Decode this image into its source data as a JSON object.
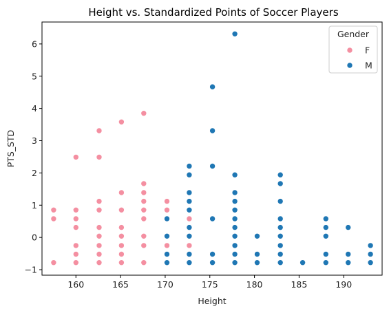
{
  "chart_data": {
    "type": "scatter",
    "title": "Height vs. Standardized Points of Soccer Players",
    "xlabel": "Height",
    "ylabel": "PTS_STD",
    "xlim": [
      156.2,
      194.3
    ],
    "ylim": [
      -1.17,
      6.68
    ],
    "xticks": [
      160,
      165,
      170,
      175,
      180,
      185,
      190
    ],
    "yticks": [
      -1,
      0,
      1,
      2,
      3,
      4,
      5,
      6
    ],
    "grid": false,
    "legend": {
      "title": "Gender",
      "placement": "top-right"
    },
    "series": [
      {
        "name": "F",
        "color": "#f48fa1",
        "points": [
          [
            157.5,
            -0.78
          ],
          [
            157.5,
            0.58
          ],
          [
            157.5,
            0.85
          ],
          [
            160,
            -0.78
          ],
          [
            160,
            -0.52
          ],
          [
            160,
            -0.25
          ],
          [
            160,
            0.31
          ],
          [
            160,
            0.58
          ],
          [
            160,
            0.85
          ],
          [
            160,
            2.49
          ],
          [
            162.6,
            -0.78
          ],
          [
            162.6,
            -0.52
          ],
          [
            162.6,
            -0.25
          ],
          [
            162.6,
            0.04
          ],
          [
            162.6,
            0.31
          ],
          [
            162.6,
            0.85
          ],
          [
            162.6,
            1.12
          ],
          [
            162.6,
            2.49
          ],
          [
            162.6,
            3.31
          ],
          [
            165.1,
            -0.78
          ],
          [
            165.1,
            -0.52
          ],
          [
            165.1,
            -0.25
          ],
          [
            165.1,
            0.04
          ],
          [
            165.1,
            0.31
          ],
          [
            165.1,
            0.85
          ],
          [
            165.1,
            1.39
          ],
          [
            165.1,
            3.58
          ],
          [
            167.6,
            -0.78
          ],
          [
            167.6,
            -0.25
          ],
          [
            167.6,
            0.04
          ],
          [
            167.6,
            0.58
          ],
          [
            167.6,
            0.85
          ],
          [
            167.6,
            1.12
          ],
          [
            167.6,
            1.39
          ],
          [
            167.6,
            1.67
          ],
          [
            167.6,
            3.85
          ],
          [
            170.2,
            -0.52
          ],
          [
            170.2,
            -0.25
          ],
          [
            170.2,
            0.04
          ],
          [
            170.2,
            0.85
          ],
          [
            170.2,
            1.12
          ],
          [
            172.7,
            -0.78
          ],
          [
            172.7,
            -0.25
          ],
          [
            172.7,
            0.58
          ],
          [
            172.7,
            1.94
          ]
        ]
      },
      {
        "name": "M",
        "color": "#1f77b4",
        "points": [
          [
            170.2,
            -0.78
          ],
          [
            170.2,
            -0.52
          ],
          [
            170.2,
            0.04
          ],
          [
            170.2,
            0.58
          ],
          [
            172.7,
            -0.78
          ],
          [
            172.7,
            -0.52
          ],
          [
            172.7,
            0.04
          ],
          [
            172.7,
            0.31
          ],
          [
            172.7,
            0.85
          ],
          [
            172.7,
            1.12
          ],
          [
            172.7,
            1.39
          ],
          [
            172.7,
            1.94
          ],
          [
            172.7,
            2.21
          ],
          [
            175.3,
            -0.78
          ],
          [
            175.3,
            -0.52
          ],
          [
            175.3,
            0.58
          ],
          [
            175.3,
            2.21
          ],
          [
            175.3,
            3.31
          ],
          [
            175.3,
            4.67
          ],
          [
            177.8,
            -0.78
          ],
          [
            177.8,
            -0.52
          ],
          [
            177.8,
            -0.25
          ],
          [
            177.8,
            0.04
          ],
          [
            177.8,
            0.31
          ],
          [
            177.8,
            0.58
          ],
          [
            177.8,
            0.85
          ],
          [
            177.8,
            1.12
          ],
          [
            177.8,
            1.39
          ],
          [
            177.8,
            1.94
          ],
          [
            177.8,
            6.31
          ],
          [
            180.3,
            -0.78
          ],
          [
            180.3,
            -0.52
          ],
          [
            180.3,
            0.04
          ],
          [
            182.9,
            -0.78
          ],
          [
            182.9,
            -0.52
          ],
          [
            182.9,
            -0.25
          ],
          [
            182.9,
            0.04
          ],
          [
            182.9,
            0.31
          ],
          [
            182.9,
            0.58
          ],
          [
            182.9,
            1.12
          ],
          [
            182.9,
            1.67
          ],
          [
            182.9,
            1.94
          ],
          [
            185.4,
            -0.78
          ],
          [
            188,
            -0.78
          ],
          [
            188,
            -0.52
          ],
          [
            188,
            0.04
          ],
          [
            188,
            0.31
          ],
          [
            188,
            0.58
          ],
          [
            190.5,
            -0.78
          ],
          [
            190.5,
            -0.52
          ],
          [
            190.5,
            0.31
          ],
          [
            193,
            -0.78
          ],
          [
            193,
            -0.52
          ],
          [
            193,
            -0.25
          ]
        ]
      }
    ]
  }
}
